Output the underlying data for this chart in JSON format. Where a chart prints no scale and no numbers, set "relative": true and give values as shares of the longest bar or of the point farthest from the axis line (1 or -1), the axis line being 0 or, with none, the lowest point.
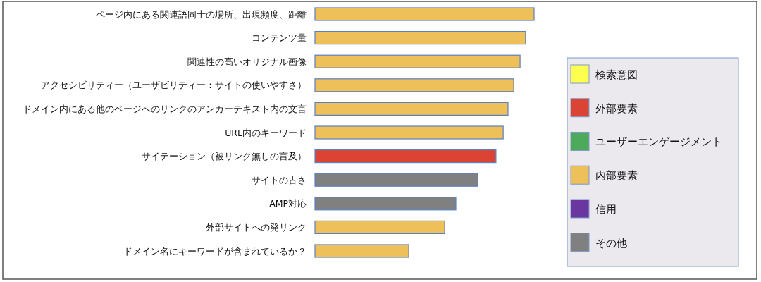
{
  "chart_data": {
    "type": "bar",
    "orientation": "horizontal",
    "relative": true,
    "legend": "right",
    "categories": [
      "ページ内にある関連語同士の場所、出現頻度、距離",
      "コンテンツ量",
      "関連性の高いオリジナル画像",
      "アクセシビリティー（ユーザビリティー：サイトの使いやすさ）",
      "ドメイン内にある他のページへのリンクのアンカーテキスト内の文言",
      "URL内のキーワード",
      "サイテーション（被リンク無しの言及）",
      "サイトの古さ",
      "AMP対応",
      "外部サイトへの発リンク",
      "ドメイン名にキーワードが含まれているか？"
    ],
    "series": [
      {
        "name": "検索意図",
        "color": "#ffff4d",
        "values": [
          null,
          null,
          null,
          null,
          null,
          null,
          null,
          null,
          null,
          null,
          null
        ]
      },
      {
        "name": "外部要素",
        "color": "#db4433",
        "values": [
          null,
          null,
          null,
          null,
          null,
          null,
          0.826,
          null,
          null,
          null,
          null
        ]
      },
      {
        "name": "ユーザーエンゲージメント",
        "color": "#4caa5a",
        "values": [
          null,
          null,
          null,
          null,
          null,
          null,
          null,
          null,
          null,
          null,
          null
        ]
      },
      {
        "name": "内部要素",
        "color": "#edc05a",
        "values": [
          1,
          0.961,
          0.936,
          0.907,
          0.881,
          0.859,
          null,
          null,
          null,
          0.592,
          0.428
        ]
      },
      {
        "name": "信用",
        "color": "#6a37a0",
        "values": [
          null,
          null,
          null,
          null,
          null,
          null,
          null,
          null,
          null,
          null,
          null
        ]
      },
      {
        "name": "その他",
        "color": "#808080",
        "values": [
          null,
          null,
          null,
          null,
          null,
          null,
          null,
          0.743,
          0.643,
          null,
          null
        ]
      }
    ]
  }
}
